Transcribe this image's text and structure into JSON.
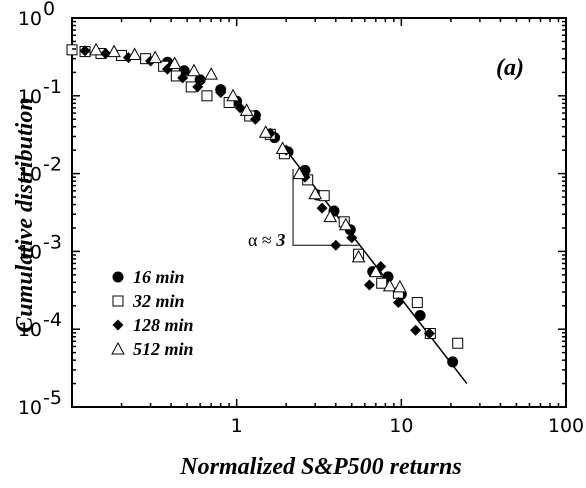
{
  "chart_data": {
    "type": "scatter",
    "title": "",
    "panel_label": "(a)",
    "xlabel": "Normalized S&P500 returns",
    "ylabel": "Cumulative distribution",
    "xscale": "log",
    "yscale": "log",
    "xlim": [
      0.1,
      100
    ],
    "ylim": [
      1e-05,
      1
    ],
    "x_ticks": [
      {
        "value": 1,
        "label": "1"
      },
      {
        "value": 10,
        "label": "10"
      },
      {
        "value": 100,
        "label": "100"
      }
    ],
    "y_ticks": [
      {
        "value": 1e-05,
        "base": "10",
        "exp": "-5"
      },
      {
        "value": 0.0001,
        "base": "10",
        "exp": "-4"
      },
      {
        "value": 0.001,
        "base": "10",
        "exp": "-3"
      },
      {
        "value": 0.01,
        "base": "10",
        "exp": "-2"
      },
      {
        "value": 0.1,
        "base": "10",
        "exp": "-1"
      },
      {
        "value": 1,
        "base": "10",
        "exp": "0"
      }
    ],
    "legend_position": "bottom-left",
    "annotation": {
      "prefix": "α ≈ ",
      "value": "3"
    },
    "fit_line": {
      "x": [
        2.0,
        25.0
      ],
      "y": [
        0.02,
        2e-05
      ]
    },
    "slope_triangle": {
      "x1": 2.2,
      "x2": 5.5,
      "y_top": 0.0115,
      "y_bottom": 0.0012
    },
    "series": [
      {
        "name": "16 min",
        "marker": "filled-circle",
        "x": [
          0.38,
          0.48,
          0.6,
          0.8,
          1.0,
          1.3,
          1.7,
          2.05,
          2.6,
          3.1,
          3.9,
          4.9,
          6.7,
          8.3,
          10.0,
          13.0,
          20.5
        ],
        "y": [
          0.27,
          0.21,
          0.16,
          0.12,
          0.085,
          0.056,
          0.029,
          0.019,
          0.011,
          0.0053,
          0.0033,
          0.0019,
          0.00055,
          0.00047,
          0.00028,
          0.00015,
          3.8e-05
        ]
      },
      {
        "name": "32 min",
        "marker": "open-square",
        "x": [
          0.1,
          0.12,
          0.15,
          0.2,
          0.28,
          0.36,
          0.43,
          0.53,
          0.66,
          0.9,
          1.2,
          1.6,
          1.95,
          2.7,
          3.4,
          4.5,
          5.5,
          7.6,
          9.6,
          12.5,
          15.0,
          22.0
        ],
        "y": [
          0.39,
          0.37,
          0.35,
          0.33,
          0.3,
          0.24,
          0.18,
          0.13,
          0.1,
          0.082,
          0.055,
          0.032,
          0.018,
          0.0083,
          0.0052,
          0.0024,
          0.00092,
          0.00039,
          0.00029,
          0.00022,
          8.8e-05,
          6.6e-05
        ]
      },
      {
        "name": "128 min",
        "marker": "filled-diamond",
        "x": [
          0.12,
          0.16,
          0.22,
          0.3,
          0.38,
          0.47,
          0.58,
          0.8,
          1.05,
          1.3,
          1.6,
          2.0,
          2.6,
          3.3,
          4.0,
          5.0,
          6.4,
          7.5,
          9.6,
          12.2,
          14.8
        ],
        "y": [
          0.38,
          0.35,
          0.31,
          0.28,
          0.22,
          0.17,
          0.13,
          0.11,
          0.07,
          0.05,
          0.033,
          0.02,
          0.009,
          0.0036,
          0.0012,
          0.0015,
          0.00037,
          0.00064,
          0.00022,
          9.7e-05,
          8.8e-05
        ]
      },
      {
        "name": "512 min",
        "marker": "open-triangle",
        "x": [
          0.14,
          0.18,
          0.24,
          0.32,
          0.42,
          0.55,
          0.7,
          0.95,
          1.15,
          1.5,
          1.9,
          2.4,
          3.0,
          3.7,
          4.6,
          5.5,
          7.0,
          8.5,
          9.8
        ],
        "y": [
          0.39,
          0.37,
          0.34,
          0.31,
          0.26,
          0.21,
          0.19,
          0.1,
          0.065,
          0.034,
          0.021,
          0.01,
          0.0055,
          0.0028,
          0.0022,
          0.00085,
          0.00055,
          0.00036,
          0.00035
        ]
      }
    ]
  }
}
